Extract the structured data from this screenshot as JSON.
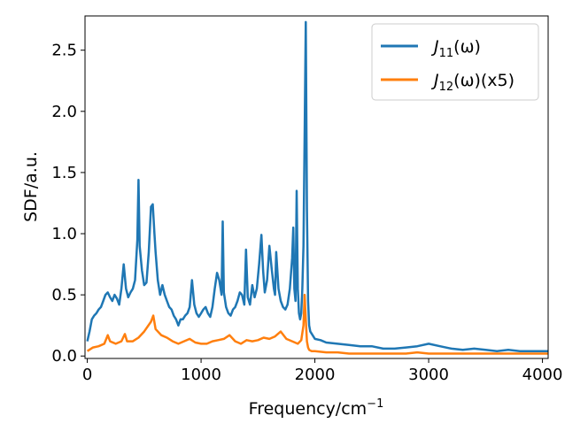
{
  "chart_data": {
    "type": "line",
    "title": "",
    "xlabel": "Frequency/cm",
    "xlabel_superscript": "−1",
    "ylabel": "SDF/a.u.",
    "xlim": [
      -20,
      4050
    ],
    "ylim": [
      -0.02,
      2.78
    ],
    "xticks": [
      0,
      1000,
      2000,
      3000,
      4000
    ],
    "yticks": [
      0.0,
      0.5,
      1.0,
      1.5,
      2.0,
      2.5
    ],
    "xtick_labels": [
      "0",
      "1000",
      "2000",
      "3000",
      "4000"
    ],
    "ytick_labels": [
      "0.0",
      "0.5",
      "1.0",
      "1.5",
      "2.0",
      "2.5"
    ],
    "grid": false,
    "legend": "top-right",
    "series": [
      {
        "name": "J11(ω)",
        "label_main": "J",
        "label_sub": "11",
        "label_tail": "(ω)",
        "color": "#1f77b4",
        "x": [
          0,
          20,
          40,
          60,
          80,
          100,
          120,
          140,
          160,
          180,
          200,
          220,
          240,
          260,
          280,
          300,
          320,
          340,
          360,
          380,
          400,
          420,
          440,
          450,
          460,
          480,
          500,
          520,
          540,
          560,
          575,
          590,
          600,
          620,
          640,
          660,
          680,
          700,
          720,
          740,
          760,
          780,
          800,
          820,
          840,
          860,
          880,
          900,
          920,
          940,
          960,
          980,
          1000,
          1020,
          1040,
          1060,
          1080,
          1100,
          1120,
          1140,
          1160,
          1180,
          1190,
          1200,
          1220,
          1240,
          1260,
          1280,
          1300,
          1320,
          1340,
          1360,
          1380,
          1395,
          1410,
          1430,
          1450,
          1470,
          1490,
          1510,
          1530,
          1545,
          1560,
          1580,
          1600,
          1620,
          1640,
          1650,
          1660,
          1680,
          1700,
          1720,
          1740,
          1760,
          1780,
          1800,
          1810,
          1820,
          1830,
          1840,
          1850,
          1860,
          1870,
          1880,
          1890,
          1900,
          1910,
          1920,
          1930,
          1940,
          1950,
          1960,
          1980,
          2000,
          2050,
          2100,
          2200,
          2300,
          2400,
          2500,
          2600,
          2700,
          2800,
          2900,
          3000,
          3100,
          3200,
          3300,
          3400,
          3500,
          3600,
          3700,
          3800,
          3900,
          4000,
          4050
        ],
        "y": [
          0.12,
          0.2,
          0.3,
          0.33,
          0.35,
          0.38,
          0.4,
          0.45,
          0.5,
          0.52,
          0.48,
          0.45,
          0.5,
          0.47,
          0.42,
          0.55,
          0.75,
          0.55,
          0.48,
          0.52,
          0.55,
          0.62,
          0.95,
          1.44,
          0.9,
          0.7,
          0.58,
          0.6,
          0.85,
          1.22,
          1.24,
          1.0,
          0.85,
          0.62,
          0.5,
          0.58,
          0.5,
          0.45,
          0.4,
          0.38,
          0.33,
          0.3,
          0.25,
          0.3,
          0.3,
          0.33,
          0.35,
          0.4,
          0.62,
          0.42,
          0.35,
          0.32,
          0.35,
          0.38,
          0.4,
          0.35,
          0.32,
          0.4,
          0.55,
          0.68,
          0.62,
          0.5,
          1.1,
          0.52,
          0.4,
          0.35,
          0.33,
          0.38,
          0.4,
          0.45,
          0.52,
          0.5,
          0.42,
          0.87,
          0.48,
          0.42,
          0.58,
          0.48,
          0.55,
          0.75,
          0.99,
          0.7,
          0.52,
          0.62,
          0.9,
          0.72,
          0.55,
          0.5,
          0.85,
          0.55,
          0.45,
          0.4,
          0.38,
          0.42,
          0.55,
          0.8,
          1.05,
          0.55,
          0.45,
          1.35,
          0.55,
          0.35,
          0.3,
          0.35,
          0.55,
          0.9,
          1.8,
          2.73,
          1.2,
          0.45,
          0.25,
          0.2,
          0.17,
          0.14,
          0.13,
          0.11,
          0.1,
          0.09,
          0.08,
          0.08,
          0.06,
          0.06,
          0.07,
          0.08,
          0.1,
          0.08,
          0.06,
          0.05,
          0.06,
          0.05,
          0.04,
          0.05,
          0.04,
          0.04,
          0.04,
          0.04
        ]
      },
      {
        "name": "J12(ω)(x5)",
        "label_main": "J",
        "label_sub": "12",
        "label_tail": "(ω)(x5)",
        "color": "#ff7f0e",
        "x": [
          0,
          50,
          100,
          150,
          180,
          200,
          250,
          300,
          330,
          350,
          400,
          450,
          500,
          560,
          580,
          600,
          650,
          700,
          750,
          800,
          850,
          900,
          950,
          1000,
          1050,
          1100,
          1150,
          1200,
          1250,
          1300,
          1350,
          1400,
          1450,
          1500,
          1550,
          1600,
          1650,
          1700,
          1750,
          1800,
          1850,
          1880,
          1900,
          1910,
          1920,
          1930,
          1940,
          1950,
          1970,
          2000,
          2100,
          2200,
          2300,
          2400,
          2500,
          2600,
          2700,
          2800,
          2900,
          3000,
          3100,
          3200,
          3300,
          3400,
          3500,
          3600,
          3700,
          3800,
          3900,
          4000,
          4050
        ],
        "y": [
          0.04,
          0.07,
          0.08,
          0.1,
          0.17,
          0.12,
          0.1,
          0.12,
          0.18,
          0.12,
          0.12,
          0.15,
          0.2,
          0.28,
          0.33,
          0.22,
          0.17,
          0.15,
          0.12,
          0.1,
          0.12,
          0.14,
          0.11,
          0.1,
          0.1,
          0.12,
          0.13,
          0.14,
          0.17,
          0.12,
          0.1,
          0.13,
          0.12,
          0.13,
          0.15,
          0.14,
          0.16,
          0.2,
          0.14,
          0.12,
          0.1,
          0.13,
          0.25,
          0.5,
          0.3,
          0.12,
          0.07,
          0.05,
          0.04,
          0.04,
          0.03,
          0.03,
          0.02,
          0.02,
          0.02,
          0.02,
          0.02,
          0.02,
          0.03,
          0.02,
          0.02,
          0.02,
          0.02,
          0.02,
          0.02,
          0.02,
          0.02,
          0.02,
          0.02,
          0.02,
          0.02
        ]
      }
    ]
  }
}
